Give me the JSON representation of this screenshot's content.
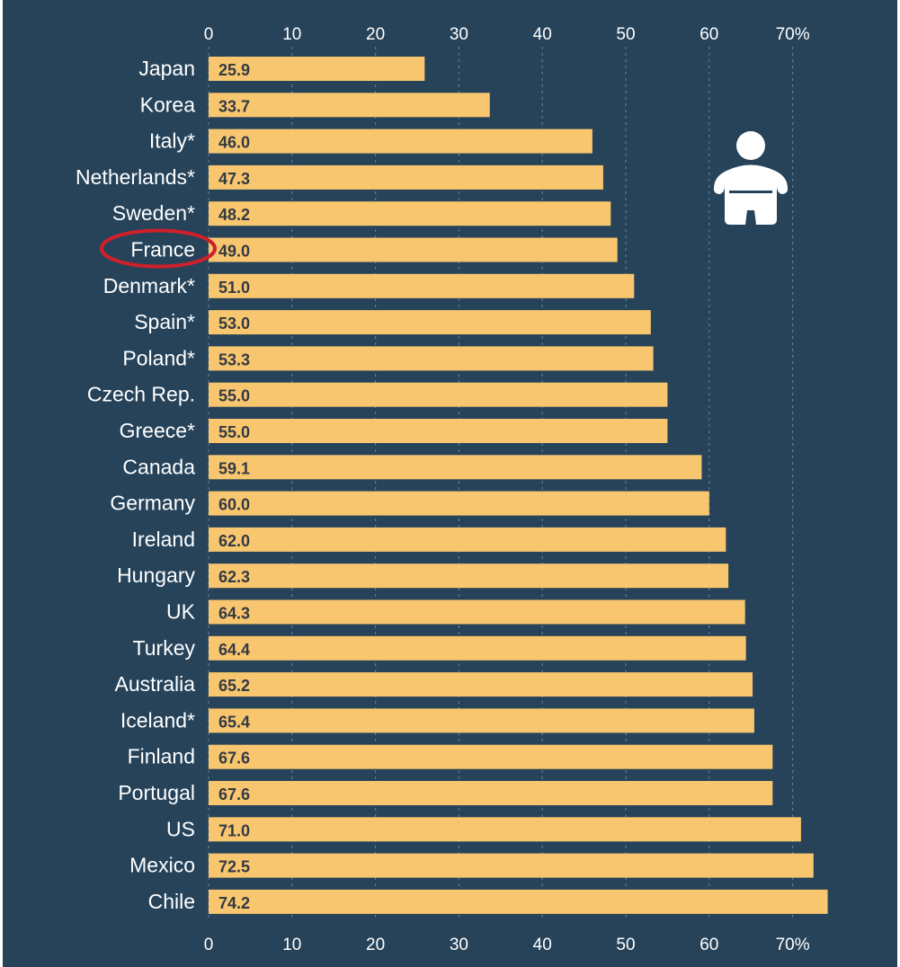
{
  "chart_data": {
    "type": "bar",
    "orientation": "horizontal",
    "categories": [
      "Japan",
      "Korea",
      "Italy*",
      "Netherlands*",
      "Sweden*",
      "France",
      "Denmark*",
      "Spain*",
      "Poland*",
      "Czech Rep.",
      "Greece*",
      "Canada",
      "Germany",
      "Ireland",
      "Hungary",
      "UK",
      "Turkey",
      "Australia",
      "Iceland*",
      "Finland",
      "Portugal",
      "US",
      "Mexico",
      "Chile"
    ],
    "values": [
      25.9,
      33.7,
      46.0,
      47.3,
      48.2,
      49.0,
      51.0,
      53.0,
      53.3,
      55.0,
      55.0,
      59.1,
      60.0,
      62.0,
      62.3,
      64.3,
      64.4,
      65.2,
      65.4,
      67.6,
      67.6,
      71.0,
      72.5,
      74.2
    ],
    "value_labels": [
      "25.9",
      "33.7",
      "46.0",
      "47.3",
      "48.2",
      "49.0",
      "51.0",
      "53.0",
      "53.3",
      "55.0",
      "55.0",
      "59.1",
      "60.0",
      "62.0",
      "62.3",
      "64.3",
      "64.4",
      "65.2",
      "65.4",
      "67.6",
      "67.6",
      "71.0",
      "72.5",
      "74.2"
    ],
    "xticks": [
      0,
      10,
      20,
      30,
      40,
      50,
      60,
      70
    ],
    "xtick_labels": [
      "0",
      "10",
      "20",
      "30",
      "40",
      "50",
      "60",
      "70%"
    ],
    "xlim": [
      0,
      74.2
    ],
    "grid": "vertical dotted",
    "axis_labels_position": "top and bottom",
    "highlighted_category": "France",
    "icon": "obese-person-icon",
    "colors": {
      "background": "#26435a",
      "bar": "#f8c66e",
      "value_text": "#333a44",
      "label_text": "#ffffff",
      "highlight_ring": "#d0202a",
      "grid": "#5d7a90"
    }
  }
}
